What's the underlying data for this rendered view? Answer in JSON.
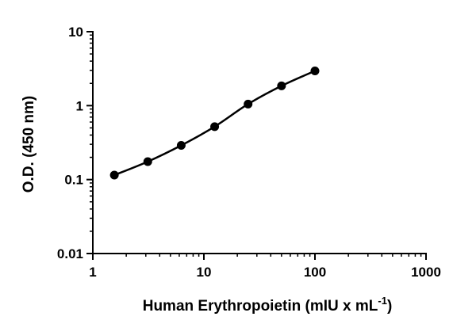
{
  "chart_data": {
    "type": "line",
    "title": "",
    "xlabel": "Human Erythropoietin (mIU x mL",
    "xlabel_superscript": "-1",
    "xlabel_suffix": ")",
    "ylabel": "O.D. (450 nm)",
    "xscale": "log",
    "yscale": "log",
    "xlim": [
      1,
      1000
    ],
    "ylim": [
      0.01,
      10
    ],
    "xticks": [
      1,
      10,
      100,
      1000
    ],
    "xtick_labels": [
      "1",
      "10",
      "100",
      "1000"
    ],
    "yticks": [
      0.01,
      0.1,
      1,
      10
    ],
    "ytick_labels": [
      "0.01",
      "0.1",
      "1",
      "10"
    ],
    "grid": false,
    "legend": "none",
    "series": [
      {
        "x": [
          1.5625,
          3.125,
          6.25,
          12.5,
          25,
          50,
          100
        ],
        "y": [
          0.115,
          0.175,
          0.29,
          0.52,
          1.05,
          1.85,
          2.95
        ],
        "color": "#000000",
        "marker": "circle"
      }
    ]
  }
}
